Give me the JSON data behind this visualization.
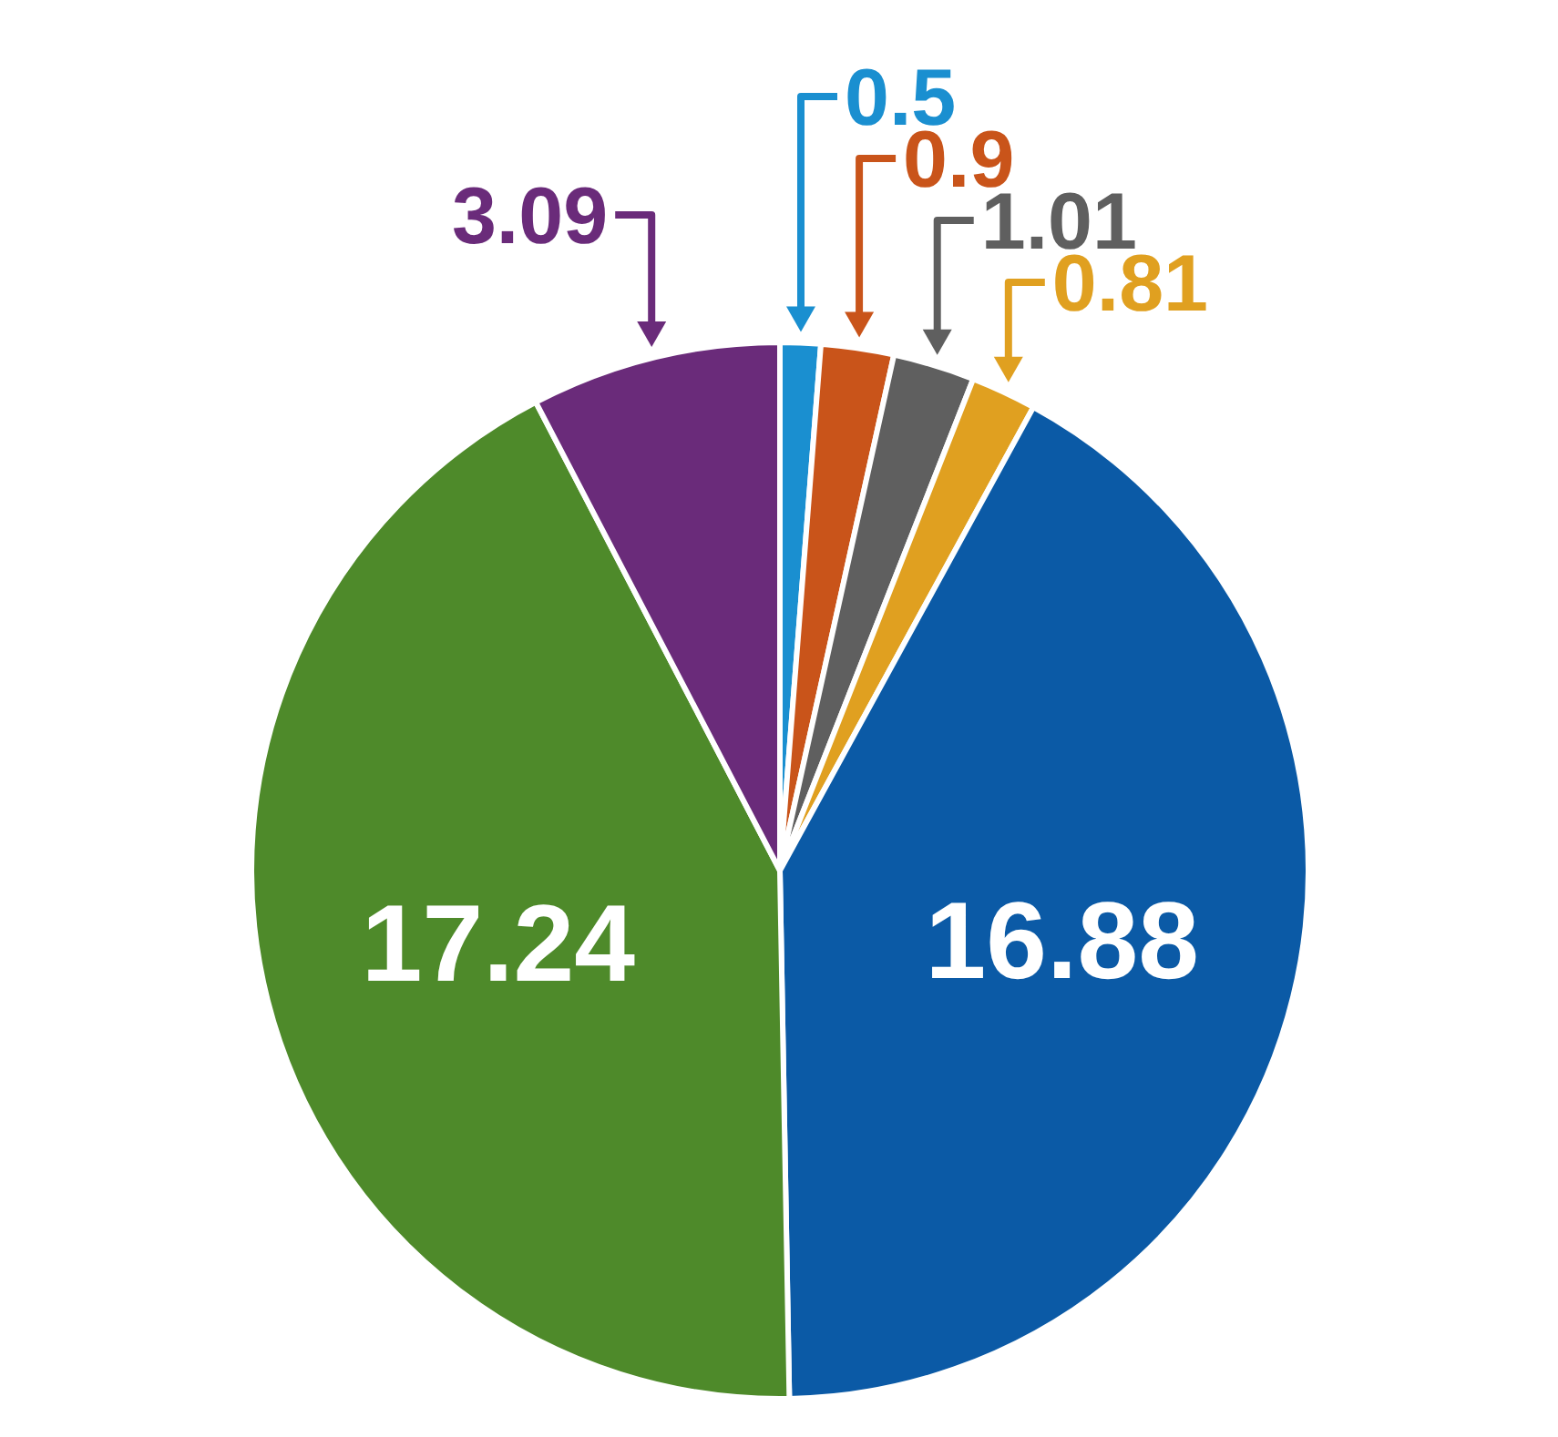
{
  "chart_data": {
    "type": "pie",
    "categories": [
      null,
      null,
      null,
      null,
      null,
      null,
      null
    ],
    "values": [
      0.5,
      0.9,
      1.01,
      0.81,
      16.88,
      17.24,
      3.09
    ],
    "colors": [
      "#1a8fd0",
      "#c9541a",
      "#5f5f5f",
      "#e0a020",
      "#0b5aa6",
      "#4e8a2a",
      "#6a2b7a"
    ],
    "data_labels": true
  }
}
